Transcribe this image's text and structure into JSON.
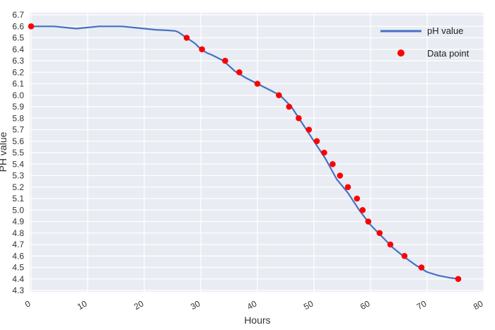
{
  "chart_data": {
    "type": "line",
    "title": "",
    "xlabel": "Hours",
    "ylabel": "PH value",
    "xlim": [
      0,
      80
    ],
    "ylim": [
      4.3,
      6.7
    ],
    "x_ticks": [
      0,
      10,
      20,
      30,
      40,
      50,
      60,
      70,
      80
    ],
    "y_ticks": [
      4.3,
      4.4,
      4.5,
      4.6,
      4.7,
      4.8,
      4.9,
      5.0,
      5.1,
      5.2,
      5.3,
      5.4,
      5.5,
      5.6,
      5.7,
      5.8,
      5.9,
      6.0,
      6.1,
      6.2,
      6.3,
      6.4,
      6.5,
      6.6,
      6.7
    ],
    "grid": true,
    "legend_position": "top-right",
    "series": [
      {
        "name": "pH value",
        "kind": "line",
        "color": "#4472c4",
        "x": [
          0,
          2,
          4,
          6,
          8,
          10,
          12,
          14,
          16,
          18,
          20,
          22,
          24,
          25.5,
          26,
          27.5,
          29,
          30,
          31,
          32,
          34,
          36,
          38,
          40,
          42,
          44,
          46,
          48,
          50,
          52,
          54,
          56,
          58,
          60,
          62,
          64,
          66,
          68,
          70,
          72,
          74,
          75.5
        ],
        "y": [
          6.6,
          6.6,
          6.6,
          6.59,
          6.58,
          6.59,
          6.6,
          6.6,
          6.6,
          6.59,
          6.58,
          6.57,
          6.565,
          6.56,
          6.55,
          6.5,
          6.45,
          6.4,
          6.37,
          6.35,
          6.3,
          6.21,
          6.15,
          6.1,
          6.05,
          6.0,
          5.9,
          5.75,
          5.6,
          5.45,
          5.27,
          5.15,
          5.0,
          4.87,
          4.77,
          4.67,
          4.59,
          4.52,
          4.46,
          4.43,
          4.41,
          4.4
        ]
      },
      {
        "name": "Data point",
        "kind": "scatter",
        "color": "#ff0000",
        "x": [
          0,
          27.5,
          30.2,
          34.3,
          36.8,
          40,
          43.8,
          45.6,
          47.3,
          49.1,
          50.5,
          51.8,
          53.3,
          54.6,
          56,
          57.6,
          58.6,
          59.6,
          61.6,
          63.5,
          66,
          69,
          75.5
        ],
        "y": [
          6.6,
          6.5,
          6.4,
          6.3,
          6.2,
          6.1,
          6.0,
          5.9,
          5.8,
          5.7,
          5.6,
          5.5,
          5.4,
          5.3,
          5.2,
          5.1,
          5.0,
          4.9,
          4.8,
          4.7,
          4.6,
          4.5,
          4.4
        ]
      }
    ]
  },
  "colors": {
    "plot_background": "#e9ecf3",
    "grid": "#ffffff"
  }
}
